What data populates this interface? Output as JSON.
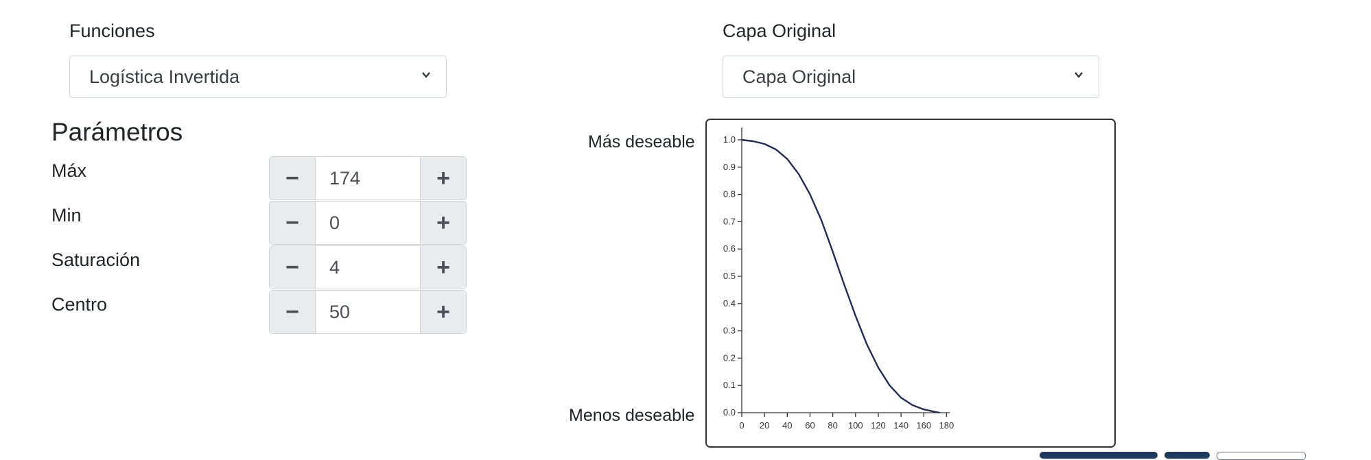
{
  "funciones": {
    "label": "Funciones",
    "selected": "Logística Invertida"
  },
  "capa": {
    "label": "Capa Original",
    "selected": "Capa Original"
  },
  "parametros": {
    "title": "Parámetros",
    "rows": [
      {
        "label": "Máx",
        "value": "174"
      },
      {
        "label": "Min",
        "value": "0"
      },
      {
        "label": "Saturación",
        "value": "4"
      },
      {
        "label": "Centro",
        "value": "50"
      }
    ],
    "minus_symbol": "−",
    "plus_symbol": "+"
  },
  "chart_labels": {
    "top": "Más deseable",
    "bottom": "Menos deseable"
  },
  "chart_data": {
    "type": "line",
    "xlim": [
      0,
      180
    ],
    "ylim": [
      0,
      1
    ],
    "x_ticks": [
      "0",
      "20",
      "40",
      "60",
      "80",
      "100",
      "120",
      "140",
      "160",
      "180"
    ],
    "y_ticks": [
      "0.0",
      "0.1",
      "0.2",
      "0.3",
      "0.4",
      "0.5",
      "0.6",
      "0.7",
      "0.8",
      "0.9",
      "1.0"
    ],
    "series": [
      {
        "color": "#1f2d5a",
        "x": [
          0,
          10,
          20,
          30,
          40,
          50,
          60,
          70,
          80,
          90,
          100,
          110,
          120,
          130,
          140,
          150,
          160,
          170,
          174
        ],
        "y": [
          1.0,
          0.995,
          0.985,
          0.965,
          0.93,
          0.875,
          0.8,
          0.705,
          0.59,
          0.47,
          0.355,
          0.25,
          0.165,
          0.1,
          0.055,
          0.028,
          0.012,
          0.003,
          0.0
        ]
      }
    ]
  }
}
